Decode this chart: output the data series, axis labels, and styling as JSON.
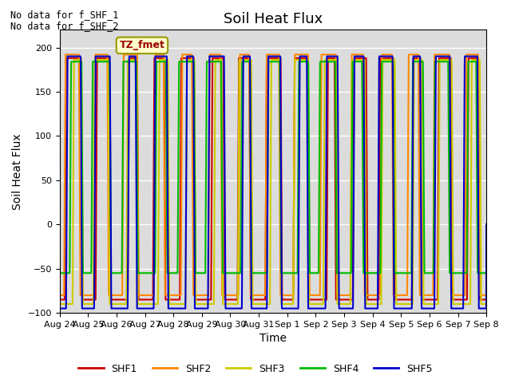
{
  "title": "Soil Heat Flux",
  "ylabel": "Soil Heat Flux",
  "xlabel": "Time",
  "annotation_lines": [
    "No data for f_SHF_1",
    "No data for f_SHF_2"
  ],
  "legend_label": "TZ_fmet",
  "ylim": [
    -100,
    220
  ],
  "yticks": [
    -100,
    -50,
    0,
    50,
    100,
    150,
    200
  ],
  "series_colors": {
    "SHF1": "#cc0000",
    "SHF2": "#ff8800",
    "SHF3": "#cccc00",
    "SHF4": "#00bb00",
    "SHF5": "#0000cc"
  },
  "background_color": "#dcdcdc",
  "outer_background": "#ffffff",
  "xtick_labels": [
    "Aug 24",
    "Aug 25",
    "Aug 26",
    "Aug 27",
    "Aug 28",
    "Aug 29",
    "Aug 30",
    "Aug 31",
    "Sep 1",
    "Sep 2",
    "Sep 3",
    "Sep 4",
    "Sep 5",
    "Sep 6",
    "Sep 7",
    "Sep 8"
  ],
  "title_fontsize": 13,
  "axis_label_fontsize": 10,
  "tick_label_fontsize": 8
}
